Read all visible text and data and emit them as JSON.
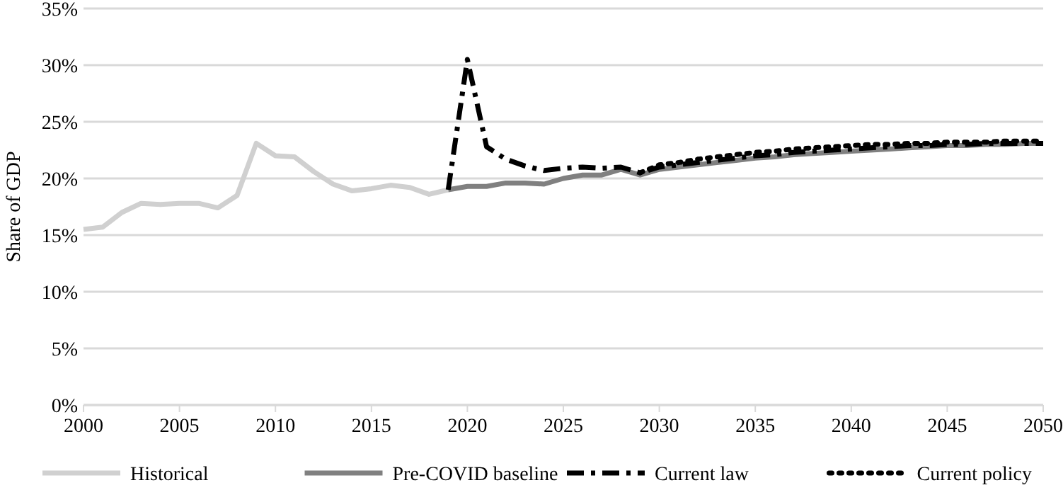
{
  "chart_data": {
    "type": "line",
    "ylabel": "Share of GDP",
    "xlim": [
      2000,
      2050
    ],
    "xticks": [
      2000,
      2005,
      2010,
      2015,
      2020,
      2025,
      2030,
      2035,
      2040,
      2045,
      2050
    ],
    "ylim": [
      0,
      35
    ],
    "yticks": [
      {
        "value": 0,
        "label": "0%"
      },
      {
        "value": 5,
        "label": "5%"
      },
      {
        "value": 10,
        "label": "10%"
      },
      {
        "value": 15,
        "label": "15%"
      },
      {
        "value": 20,
        "label": "20%"
      },
      {
        "value": 25,
        "label": "25%"
      },
      {
        "value": 30,
        "label": "30%"
      },
      {
        "value": 35,
        "label": "35%"
      }
    ],
    "grid": "y",
    "legend": "bottom",
    "marker": "none",
    "series": [
      {
        "name": "Historical",
        "color": "#d0d0d0",
        "line_style": "solid",
        "x": [
          2000,
          2001,
          2002,
          2003,
          2004,
          2005,
          2006,
          2007,
          2008,
          2009,
          2010,
          2011,
          2012,
          2013,
          2014,
          2015,
          2016,
          2017,
          2018,
          2019
        ],
        "values": [
          15.5,
          15.7,
          17.0,
          17.8,
          17.7,
          17.8,
          17.8,
          17.4,
          18.5,
          23.1,
          22.0,
          21.9,
          20.6,
          19.5,
          18.9,
          19.1,
          19.4,
          19.2,
          18.6,
          19.0
        ]
      },
      {
        "name": "Pre-COVID baseline",
        "color": "#808080",
        "line_style": "solid",
        "x": [
          2019,
          2020,
          2021,
          2022,
          2023,
          2024,
          2025,
          2026,
          2027,
          2028,
          2029,
          2030,
          2031,
          2032,
          2033,
          2034,
          2035,
          2036,
          2037,
          2038,
          2039,
          2040,
          2041,
          2042,
          2043,
          2044,
          2045,
          2046,
          2047,
          2048,
          2049,
          2050
        ],
        "values": [
          19.0,
          19.3,
          19.3,
          19.6,
          19.6,
          19.5,
          20.0,
          20.3,
          20.3,
          20.8,
          20.3,
          20.8,
          21.0,
          21.2,
          21.4,
          21.6,
          21.8,
          21.9,
          22.1,
          22.2,
          22.3,
          22.4,
          22.5,
          22.6,
          22.7,
          22.8,
          22.9,
          22.9,
          23.0,
          23.0,
          23.1,
          23.1
        ]
      },
      {
        "name": "Current law",
        "color": "#000000",
        "line_style": "dashed",
        "x": [
          2019,
          2020,
          2021,
          2022,
          2023,
          2024,
          2025,
          2026,
          2027,
          2028,
          2029,
          2030,
          2031,
          2032,
          2033,
          2034,
          2035,
          2036,
          2037,
          2038,
          2039,
          2040,
          2041,
          2042,
          2043,
          2044,
          2045,
          2046,
          2047,
          2048,
          2049,
          2050
        ],
        "values": [
          19.0,
          30.5,
          22.8,
          21.7,
          21.1,
          20.7,
          20.9,
          21.0,
          20.9,
          21.0,
          20.5,
          21.0,
          21.2,
          21.4,
          21.6,
          21.8,
          22.0,
          22.1,
          22.3,
          22.4,
          22.5,
          22.6,
          22.7,
          22.8,
          22.9,
          22.9,
          23.0,
          23.0,
          23.1,
          23.1,
          23.1,
          23.1
        ]
      },
      {
        "name": "Current policy",
        "color": "#000000",
        "line_style": "dotted",
        "x": [
          2029,
          2030,
          2031,
          2032,
          2033,
          2034,
          2035,
          2036,
          2037,
          2038,
          2039,
          2040,
          2041,
          2042,
          2043,
          2044,
          2045,
          2046,
          2047,
          2048,
          2049,
          2050
        ],
        "values": [
          20.5,
          21.2,
          21.4,
          21.7,
          21.9,
          22.1,
          22.3,
          22.4,
          22.6,
          22.7,
          22.8,
          22.9,
          23.0,
          23.0,
          23.1,
          23.1,
          23.2,
          23.2,
          23.2,
          23.3,
          23.3,
          23.3
        ]
      }
    ]
  }
}
